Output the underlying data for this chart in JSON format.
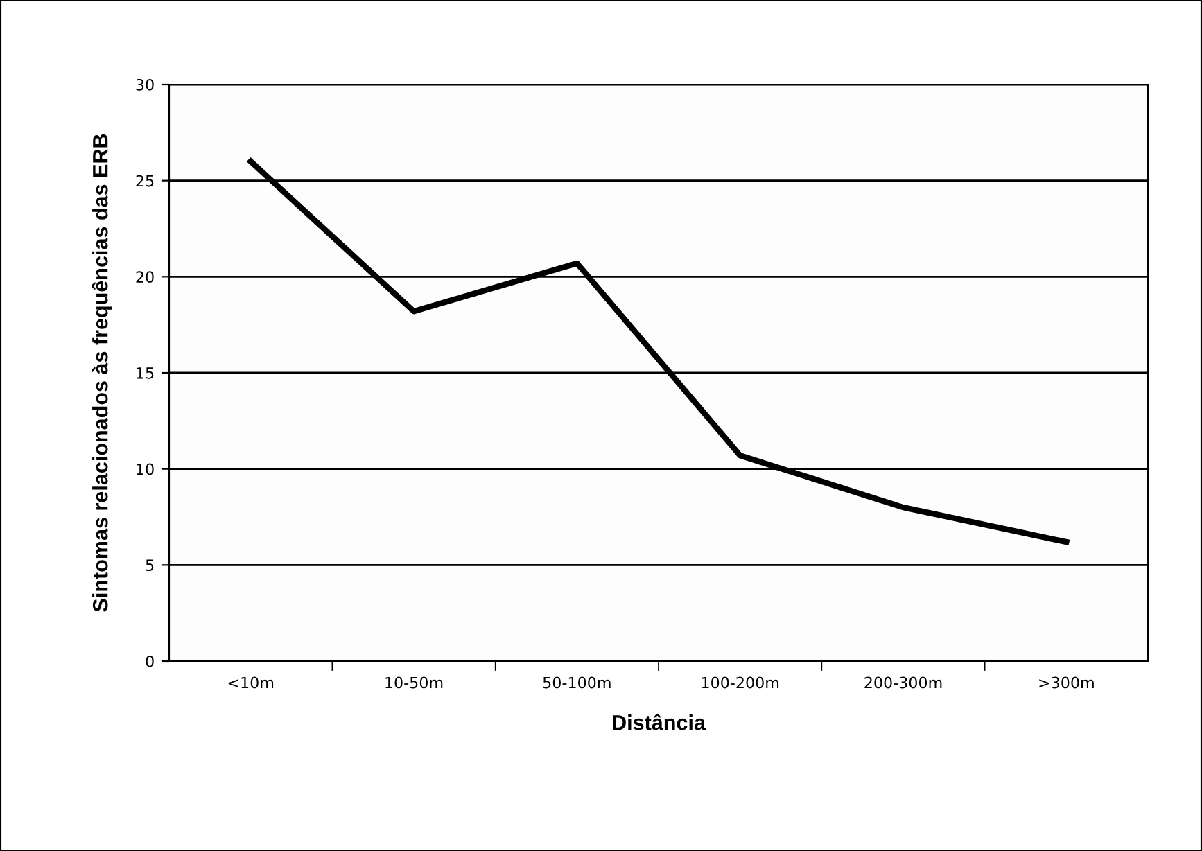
{
  "chart_data": {
    "type": "line",
    "xlabel": "Distância",
    "ylabel": "Sintomas relacionados às frequências das ERB",
    "categories": [
      "<10m",
      "10-50m",
      "50-100m",
      "100-200m",
      "200-300m",
      ">300m"
    ],
    "series": [
      {
        "color": "#000000",
        "values": [
          26,
          18.2,
          20.7,
          10.7,
          8.0,
          6.2
        ]
      }
    ],
    "ylim": [
      0,
      30
    ],
    "yticks": [
      0,
      5,
      10,
      15,
      20,
      25,
      30
    ],
    "grid": "y",
    "marker": "none",
    "line_style": "solid"
  }
}
